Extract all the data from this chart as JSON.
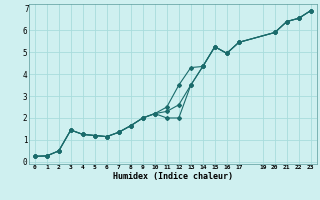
{
  "xlabel": "Humidex (Indice chaleur)",
  "bg_color": "#cff0f0",
  "line_color": "#1a6b6b",
  "grid_color": "#a8dcdc",
  "xlim": [
    -0.5,
    23.5
  ],
  "ylim": [
    -0.1,
    7.2
  ],
  "xticks": [
    0,
    1,
    2,
    3,
    4,
    5,
    6,
    7,
    8,
    9,
    10,
    11,
    12,
    13,
    14,
    15,
    16,
    17,
    19,
    20,
    21,
    22,
    23
  ],
  "yticks": [
    0,
    1,
    2,
    3,
    4,
    5,
    6
  ],
  "series1_x": [
    0,
    1,
    2,
    3,
    4,
    5,
    6,
    7,
    8,
    9,
    10,
    11,
    12,
    13,
    14,
    15,
    16,
    17,
    20,
    21,
    22,
    23
  ],
  "series1_y": [
    0.25,
    0.27,
    0.5,
    1.45,
    1.25,
    1.2,
    1.15,
    1.35,
    1.65,
    2.0,
    2.2,
    2.0,
    2.0,
    3.5,
    4.35,
    5.25,
    4.95,
    5.45,
    5.9,
    6.4,
    6.55,
    6.9
  ],
  "series2_x": [
    0,
    1,
    2,
    3,
    4,
    5,
    6,
    7,
    8,
    9,
    10,
    11,
    12,
    13,
    14,
    15,
    16,
    17,
    20,
    21,
    22,
    23
  ],
  "series2_y": [
    0.25,
    0.27,
    0.5,
    1.45,
    1.25,
    1.2,
    1.15,
    1.35,
    1.65,
    2.0,
    2.2,
    2.3,
    2.6,
    3.5,
    4.35,
    5.25,
    4.95,
    5.45,
    5.9,
    6.4,
    6.55,
    6.9
  ],
  "series3_x": [
    0,
    1,
    2,
    3,
    4,
    5,
    6,
    7,
    8,
    9,
    10,
    11,
    12,
    13,
    14,
    15,
    16,
    17,
    20,
    21,
    22,
    23
  ],
  "series3_y": [
    0.25,
    0.27,
    0.5,
    1.45,
    1.25,
    1.2,
    1.15,
    1.35,
    1.65,
    2.0,
    2.2,
    2.5,
    3.5,
    4.3,
    4.35,
    5.25,
    4.95,
    5.45,
    5.9,
    6.4,
    6.55,
    6.9
  ],
  "xtick_labels": [
    "0",
    "1",
    "2",
    "3",
    "4",
    "5",
    "6",
    "7",
    "8",
    "9",
    "10",
    "11",
    "12",
    "13",
    "14",
    "15",
    "16",
    "17",
    "19",
    "20",
    "21",
    "22",
    "23"
  ]
}
